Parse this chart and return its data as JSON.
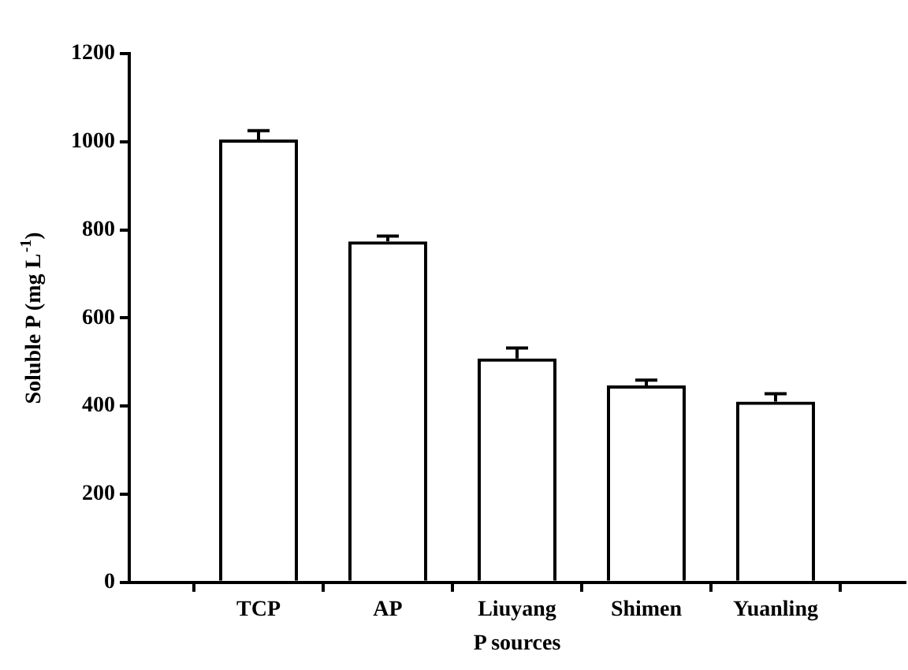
{
  "chart_data": {
    "type": "bar",
    "xlabel": "P sources",
    "ylabel": "Soluble P (mg L$^{-1}$)",
    "categories": [
      "TCP",
      "AP",
      "Liuyang",
      "Shimen",
      "Yuanling"
    ],
    "series": [
      {
        "color": "#000000",
        "values": [
          1005,
          774,
          508,
          447,
          410
        ],
        "errors": [
          20,
          12,
          24,
          12,
          18
        ]
      }
    ],
    "ylim": [
      0,
      1200
    ],
    "yticks": [
      0,
      200,
      400,
      600,
      800,
      1000,
      1200
    ],
    "grid": false,
    "legend": false
  }
}
